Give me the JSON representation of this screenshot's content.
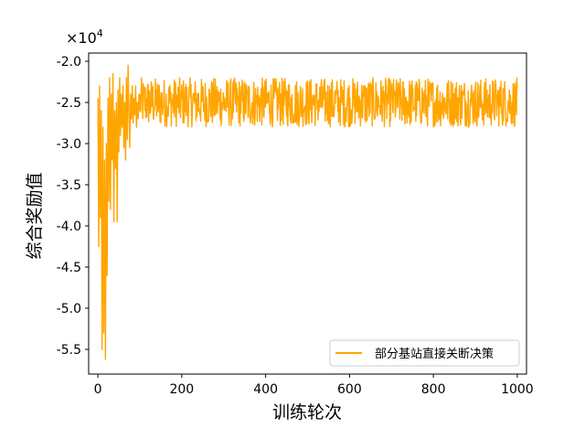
{
  "chart_data": {
    "type": "line",
    "title": "",
    "xlabel": "训练轮次",
    "ylabel": "综合奖励值",
    "y_offset_label": "×10",
    "y_offset_exponent": "4",
    "xlim": [
      -22,
      1022
    ],
    "ylim": [
      -5.8,
      -1.9
    ],
    "x_ticks": [
      0,
      200,
      400,
      600,
      800,
      1000
    ],
    "x_tick_labels": [
      "0",
      "200",
      "400",
      "600",
      "800",
      "1000"
    ],
    "y_ticks": [
      -2.0,
      -2.5,
      -3.0,
      -3.5,
      -4.0,
      -4.5,
      -5.0,
      -5.5
    ],
    "y_tick_labels": [
      "-2.0",
      "-2.5",
      "-3.0",
      "-3.5",
      "-4.0",
      "-4.5",
      "-5.0",
      "-5.5"
    ],
    "grid": false,
    "legend_position": "lower-right",
    "series": [
      {
        "name": "部分基站直接关断决策",
        "color": "#FFA500",
        "episodes": 1000,
        "x_range": [
          0,
          1000
        ],
        "noise_band": [
          -2.8,
          -2.2
        ],
        "points": [
          [
            0,
            -2.45
          ],
          [
            2,
            -4.25
          ],
          [
            4,
            -2.3
          ],
          [
            6,
            -3.9
          ],
          [
            8,
            -2.6
          ],
          [
            10,
            -5.5
          ],
          [
            12,
            -2.8
          ],
          [
            14,
            -5.3
          ],
          [
            16,
            -3.2
          ],
          [
            18,
            -5.62
          ],
          [
            20,
            -3.0
          ],
          [
            22,
            -4.6
          ],
          [
            24,
            -2.45
          ],
          [
            26,
            -3.7
          ],
          [
            28,
            -2.2
          ],
          [
            30,
            -3.8
          ],
          [
            32,
            -2.4
          ],
          [
            34,
            -3.2
          ],
          [
            36,
            -2.15
          ],
          [
            38,
            -3.95
          ],
          [
            40,
            -2.6
          ],
          [
            42,
            -3.3
          ],
          [
            44,
            -2.5
          ],
          [
            46,
            -3.95
          ],
          [
            48,
            -2.35
          ],
          [
            50,
            -3.1
          ],
          [
            52,
            -2.2
          ],
          [
            54,
            -2.9
          ],
          [
            56,
            -2.4
          ],
          [
            58,
            -2.8
          ],
          [
            60,
            -2.3
          ],
          [
            62,
            -3.05
          ],
          [
            64,
            -2.5
          ],
          [
            66,
            -3.2
          ],
          [
            68,
            -2.2
          ],
          [
            70,
            -2.95
          ],
          [
            72,
            -2.05
          ],
          [
            74,
            -2.6
          ],
          [
            76,
            -3.05
          ],
          [
            78,
            -2.4
          ],
          [
            80,
            -2.7
          ],
          [
            82,
            -2.3
          ],
          [
            84,
            -2.75
          ],
          [
            86,
            -2.45
          ],
          [
            88,
            -2.65
          ],
          [
            90,
            -2.3
          ],
          [
            92,
            -2.8
          ],
          [
            94,
            -2.5
          ],
          [
            96,
            -2.7
          ],
          [
            98,
            -2.4
          ],
          [
            100,
            -2.6
          ]
        ]
      }
    ]
  }
}
